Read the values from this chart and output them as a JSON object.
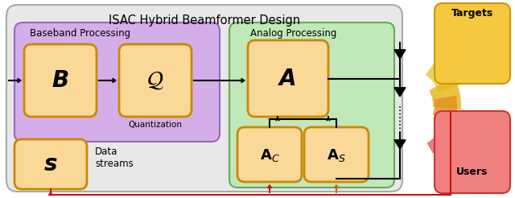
{
  "title": "ISAC Hybrid Beamformer Design",
  "title_fontsize": 10.5,
  "text_baseband": "Baseband Processing",
  "text_analog": "Analog Processing",
  "text_quantization": "Quantization",
  "text_data": "Data\nstreams",
  "text_targets": "Targets",
  "text_users": "Users",
  "label_B": "B",
  "label_s": "s",
  "label_A": "A",
  "outer_fc": "#e8e8e8",
  "outer_ec": "#aaaaaa",
  "baseband_fc": "#d4aee8",
  "baseband_ec": "#9966bb",
  "analog_fc": "#c0e8b8",
  "analog_ec": "#66aa55",
  "block_fc": "#fad898",
  "block_ec": "#cc8800",
  "targets_fc": "#f5c840",
  "targets_ec": "#cc9900",
  "users_fc": "#f08080",
  "users_ec": "#cc3333",
  "arrow_color": "#000000",
  "feedback_red": "#cc1111",
  "feedback_orange": "#cc6600",
  "beam_red": "#d82020",
  "beam_orange1": "#e09020",
  "beam_orange2": "#e8b820",
  "beam_yellow": "#e8d050"
}
